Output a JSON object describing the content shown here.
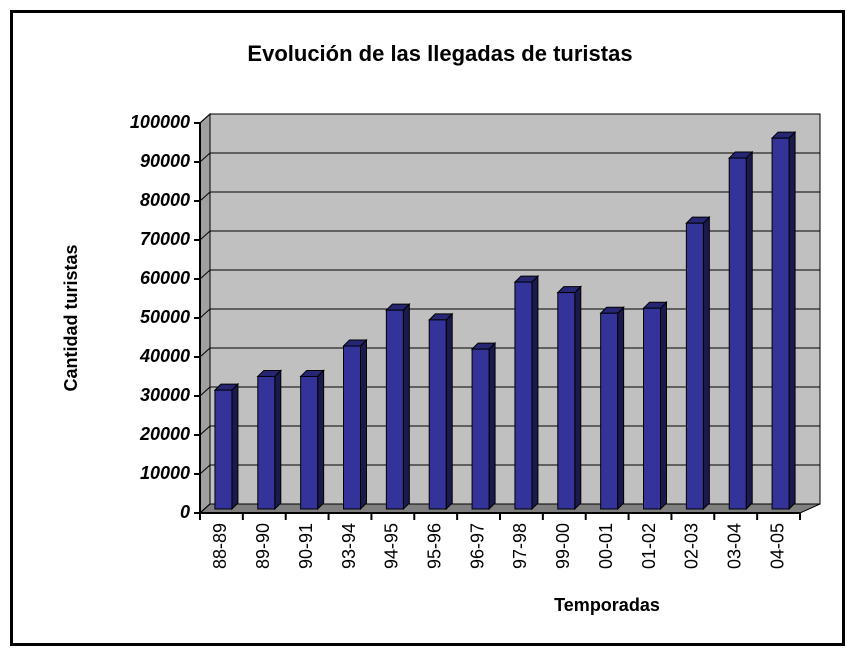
{
  "chart_data": {
    "type": "bar3d",
    "title": "Evolución de las llegadas de turistas",
    "x_label": "Temporadas",
    "y_label": "Cantidad turistas",
    "categories": [
      "88-89",
      "89-90",
      "90-91",
      "93-94",
      "94-95",
      "95-96",
      "96-97",
      "97-98",
      "99-00",
      "00-01",
      "01-02",
      "02-03",
      "03-04",
      "04-05"
    ],
    "values": [
      31000,
      34500,
      34500,
      42300,
      51500,
      49000,
      41500,
      58700,
      56000,
      50700,
      52000,
      73800,
      90500,
      95600
    ],
    "color": "#333399",
    "ylim": [
      0,
      100000
    ],
    "yticks": [
      0,
      10000,
      20000,
      30000,
      40000,
      50000,
      60000,
      70000,
      80000,
      90000,
      100000
    ],
    "grid": true
  }
}
